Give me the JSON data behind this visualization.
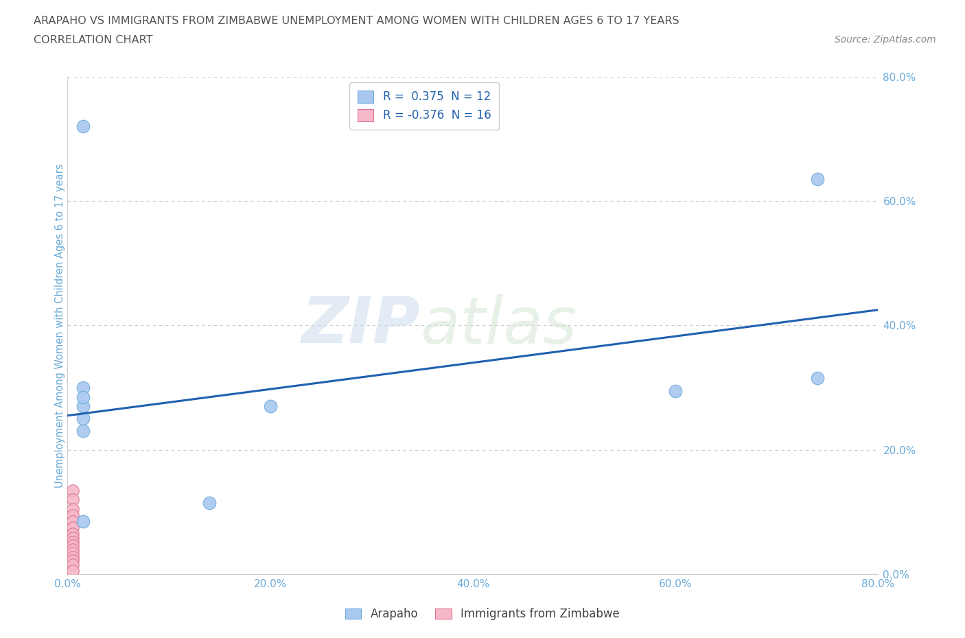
{
  "title_line1": "ARAPAHO VS IMMIGRANTS FROM ZIMBABWE UNEMPLOYMENT AMONG WOMEN WITH CHILDREN AGES 6 TO 17 YEARS",
  "title_line2": "CORRELATION CHART",
  "source": "Source: ZipAtlas.com",
  "ylabel": "Unemployment Among Women with Children Ages 6 to 17 years",
  "xlim": [
    0,
    0.8
  ],
  "ylim": [
    0,
    0.8
  ],
  "xtick_labels": [
    "0.0%",
    "",
    "20.0%",
    "",
    "40.0%",
    "",
    "60.0%",
    "",
    "80.0%"
  ],
  "xtick_vals": [
    0.0,
    0.1,
    0.2,
    0.3,
    0.4,
    0.5,
    0.6,
    0.7,
    0.8
  ],
  "ytick_labels": [
    "0.0%",
    "20.0%",
    "40.0%",
    "60.0%",
    "80.0%"
  ],
  "ytick_vals": [
    0.0,
    0.2,
    0.4,
    0.6,
    0.8
  ],
  "arapaho_x": [
    0.015,
    0.015,
    0.015,
    0.015,
    0.015,
    0.015,
    0.14,
    0.2,
    0.74,
    0.6,
    0.74,
    0.015
  ],
  "arapaho_y": [
    0.72,
    0.27,
    0.25,
    0.23,
    0.3,
    0.285,
    0.115,
    0.27,
    0.635,
    0.295,
    0.315,
    0.085
  ],
  "zimbabwe_x": [
    0.005,
    0.005,
    0.005,
    0.005,
    0.005,
    0.005,
    0.005,
    0.005,
    0.005,
    0.005,
    0.005,
    0.005,
    0.005,
    0.005,
    0.005,
    0.005
  ],
  "zimbabwe_y": [
    0.135,
    0.12,
    0.105,
    0.095,
    0.085,
    0.075,
    0.065,
    0.058,
    0.052,
    0.046,
    0.04,
    0.034,
    0.028,
    0.022,
    0.015,
    0.005
  ],
  "trend_x": [
    0.0,
    0.8
  ],
  "trend_y": [
    0.255,
    0.425
  ],
  "arapaho_color": "#a8c8f0",
  "arapaho_edge": "#6aaad8",
  "zimbabwe_color": "#f5b8c8",
  "zimbabwe_edge": "#e07090",
  "trend_color": "#2060b0",
  "legend_r_arapaho": "R =  0.375  N = 12",
  "legend_r_zimbabwe": "R = -0.376  N = 16",
  "watermark_zip": "ZIP",
  "watermark_atlas": "atlas",
  "grid_color": "#cccccc",
  "bg_color": "#ffffff",
  "title_color": "#555555",
  "source_color": "#888888",
  "axis_label_color": "#6aaad8",
  "tick_label_color": "#6aaad8"
}
